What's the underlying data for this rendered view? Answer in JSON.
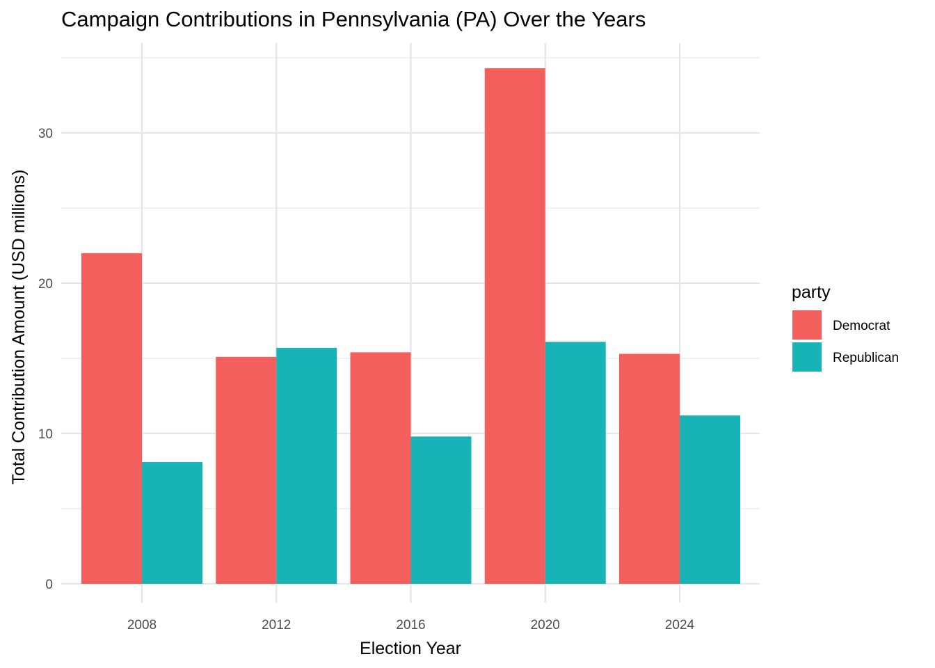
{
  "chart_data": {
    "type": "bar",
    "title": "Campaign Contributions in Pennsylvania (PA) Over the Years",
    "xlabel": "Election Year",
    "ylabel": "Total Contribution Amount (USD millions)",
    "categories": [
      "2008",
      "2012",
      "2016",
      "2020",
      "2024"
    ],
    "series": [
      {
        "name": "Democrat",
        "color": "#F35F5C",
        "values": [
          22.0,
          15.1,
          15.4,
          34.3,
          15.3
        ]
      },
      {
        "name": "Republican",
        "color": "#18B3B7",
        "values": [
          8.1,
          15.7,
          9.8,
          16.1,
          11.2
        ]
      }
    ],
    "ylim": [
      0,
      35
    ],
    "yticks": [
      0,
      10,
      20,
      30
    ],
    "grid": true,
    "legend": {
      "title": "party",
      "position": "right"
    }
  }
}
